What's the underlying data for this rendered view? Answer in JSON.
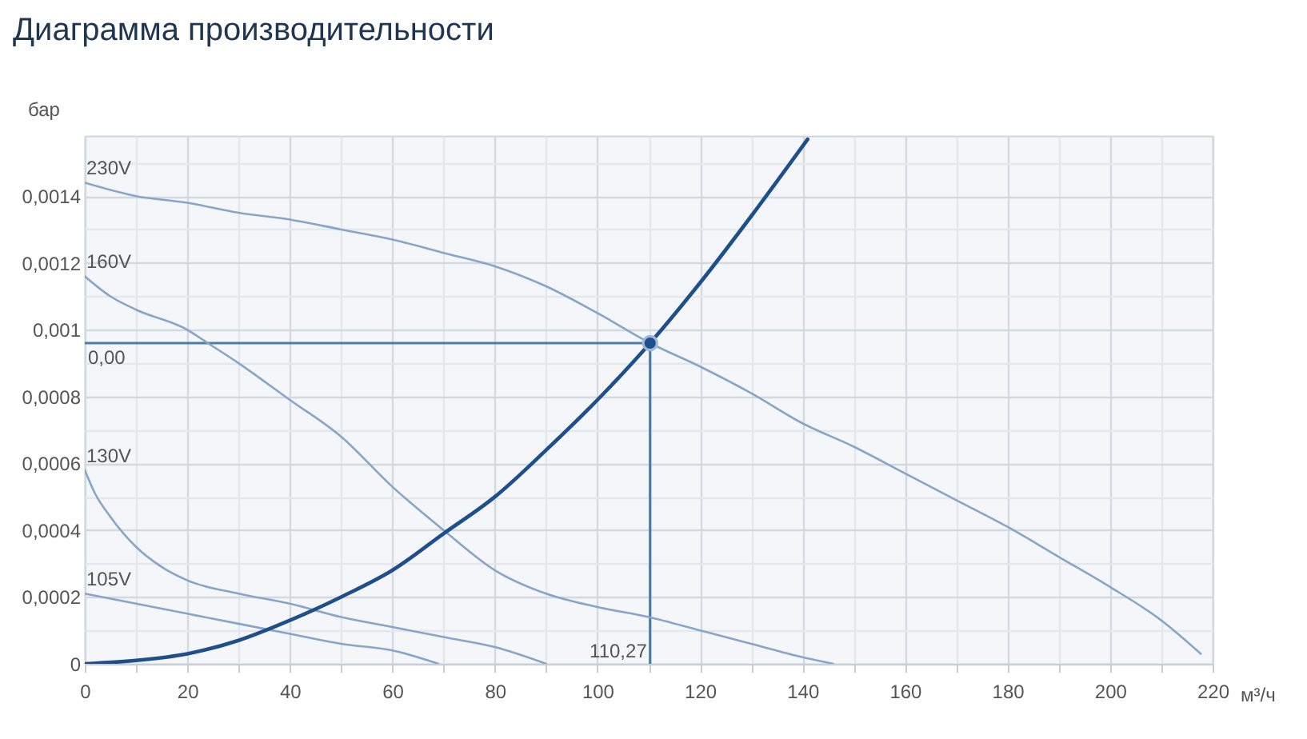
{
  "chart_data": {
    "type": "line",
    "title": "Диаграмма производительности",
    "xlabel": "м³/ч",
    "ylabel": "бар",
    "xlim": [
      0,
      220
    ],
    "xticks": [
      0,
      {
        "value": 10,
        "label": null
      },
      20,
      {
        "value": 30,
        "label": null
      },
      40,
      {
        "value": 50,
        "label": null
      },
      60,
      {
        "value": 70,
        "label": null
      },
      80,
      {
        "value": 90,
        "label": null
      },
      100,
      {
        "value": 110,
        "label": null
      },
      120,
      {
        "value": 130,
        "label": null
      },
      140,
      {
        "value": 150,
        "label": null
      },
      160,
      {
        "value": 170,
        "label": null
      },
      180,
      {
        "value": 190,
        "label": null
      },
      200,
      {
        "value": 210,
        "label": null
      },
      220
    ],
    "ylim": [
      0,
      0.00158
    ],
    "yticks": [
      0,
      {
        "value": 0.0001,
        "label": null
      },
      {
        "value": 0.0002,
        "label": "0,0002"
      },
      {
        "value": 0.0003,
        "label": null
      },
      {
        "value": 0.0004,
        "label": "0,0004"
      },
      {
        "value": 0.0005,
        "label": null
      },
      {
        "value": 0.0006,
        "label": "0,0006"
      },
      {
        "value": 0.0007,
        "label": null
      },
      {
        "value": 0.0008,
        "label": "0,0008"
      },
      {
        "value": 0.0009,
        "label": null
      },
      {
        "value": 0.001,
        "label": "0,001"
      },
      {
        "value": 0.0011,
        "label": null
      },
      {
        "value": 0.0012,
        "label": "0,0012"
      },
      {
        "value": 0.0013,
        "label": null
      },
      {
        "value": 0.0014,
        "label": "0,0014"
      },
      {
        "value": 0.0015,
        "label": null
      }
    ],
    "grid": true,
    "series": [
      {
        "name": "230V",
        "color": "#87a5c9",
        "x": [
          0,
          10,
          20,
          30,
          40,
          50,
          60,
          70,
          80,
          90,
          100,
          110.27,
          120,
          130,
          140,
          150,
          160,
          170,
          180,
          190,
          200,
          210,
          217.7
        ],
        "values": [
          0.00144,
          0.0014,
          0.00138,
          0.00135,
          0.00133,
          0.0013,
          0.00127,
          0.00123,
          0.00119,
          0.00113,
          0.00105,
          0.00096,
          0.00089,
          0.00081,
          0.00072,
          0.00065,
          0.00057,
          0.00049,
          0.00041,
          0.00032,
          0.00023,
          0.00013,
          3e-05
        ]
      },
      {
        "name": "160V",
        "color": "#87a5c9",
        "x": [
          0,
          5,
          10,
          20,
          24,
          30,
          40,
          50,
          60,
          70,
          80,
          90,
          100,
          110,
          120,
          130,
          140,
          146
        ],
        "values": [
          0.00116,
          0.0011,
          0.00106,
          0.001,
          0.00096,
          0.0009,
          0.00079,
          0.00068,
          0.00053,
          0.0004,
          0.00028,
          0.00021,
          0.00017,
          0.00014,
          0.0001,
          6e-05,
          2e-05,
          0
        ]
      },
      {
        "name": "130V",
        "color": "#87a5c9",
        "x": [
          0,
          2,
          5,
          10,
          15,
          20,
          30,
          40,
          50,
          60,
          70,
          80,
          90
        ],
        "values": [
          0.00058,
          0.00051,
          0.00044,
          0.00035,
          0.00029,
          0.00025,
          0.00021,
          0.00018,
          0.00014,
          0.00011,
          8e-05,
          5e-05,
          0
        ]
      },
      {
        "name": "105V",
        "color": "#87a5c9",
        "x": [
          0,
          10,
          20,
          30,
          40,
          50,
          60,
          69
        ],
        "values": [
          0.00021,
          0.00018,
          0.00015,
          0.00012,
          9e-05,
          6e-05,
          4e-05,
          0
        ]
      },
      {
        "color": "#1f4f8a",
        "x": [
          0,
          10,
          20,
          30,
          40,
          50,
          60,
          70,
          80,
          90,
          100,
          110.27,
          120,
          130,
          141
        ],
        "values": [
          0,
          1e-05,
          3e-05,
          7e-05,
          0.00013,
          0.0002,
          0.00028,
          0.00039,
          0.0005,
          0.00064,
          0.00079,
          0.00096,
          0.00114,
          0.00134,
          0.00157
        ]
      },
      {
        "type": "scatter",
        "marker": "circle",
        "color": "#1f4f8a",
        "x": [
          110.27
        ],
        "values": [
          0.00096
        ]
      }
    ],
    "ref_lines": [
      {
        "axis": "y",
        "value": 0.00096,
        "label": "0,00",
        "color": "#4a7bb0"
      },
      {
        "axis": "x",
        "value": 110.27,
        "label": "110,27",
        "color": "#4a7bb0"
      }
    ]
  }
}
